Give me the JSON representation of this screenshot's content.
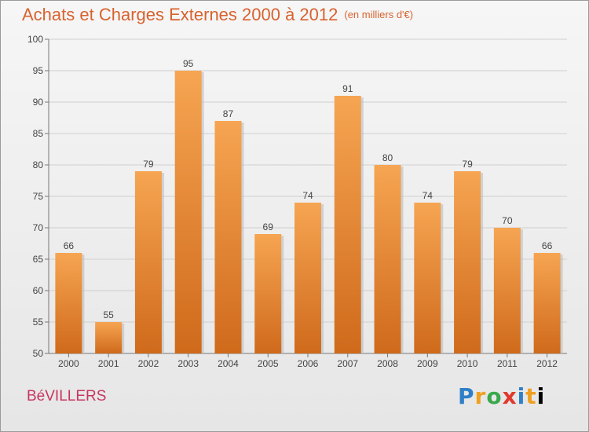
{
  "header": {
    "title": "Achats et Charges Externes 2000 à 2012",
    "unit": "(en milliers d'€)"
  },
  "footer": {
    "commune": "BéVILLERS",
    "logo_text": "Proxiti"
  },
  "colors": {
    "bar_top": "#f6a552",
    "bar_bottom": "#cf6a1b",
    "title": "#d8622f",
    "commune": "#c8365f"
  },
  "chart_data": {
    "type": "bar",
    "title": "Achats et Charges Externes 2000 à 2012",
    "subtitle": "(en milliers d'€)",
    "categories": [
      "2000",
      "2001",
      "2002",
      "2003",
      "2004",
      "2005",
      "2006",
      "2007",
      "2008",
      "2009",
      "2010",
      "2011",
      "2012"
    ],
    "values": [
      66,
      55,
      79,
      95,
      87,
      69,
      74,
      91,
      80,
      74,
      79,
      70,
      66
    ],
    "ylim": [
      50,
      100
    ],
    "yticks": [
      50,
      55,
      60,
      65,
      70,
      75,
      80,
      85,
      90,
      95,
      100
    ],
    "grid": true,
    "legend": "none"
  }
}
